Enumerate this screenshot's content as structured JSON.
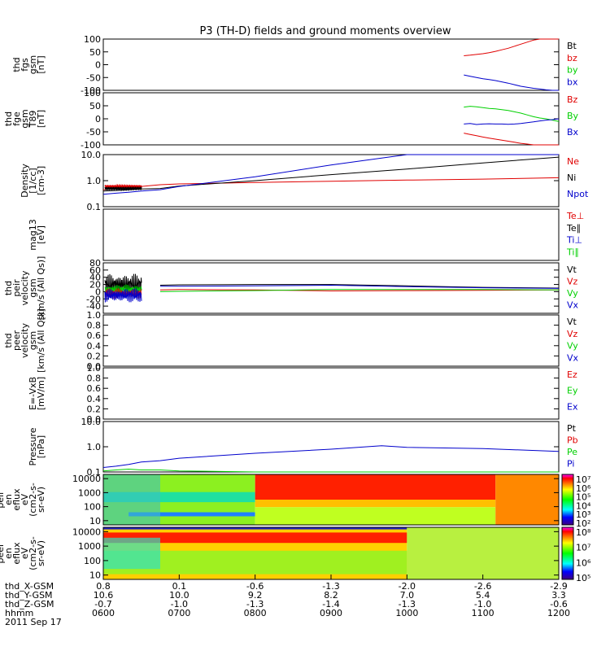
{
  "title": "P3 (TH-D) fields and ground moments overview",
  "colors": {
    "black": "#000000",
    "red": "#e00000",
    "green": "#00d000",
    "blue": "#0000cc"
  },
  "chart_data": {
    "type": "line",
    "x_range": [
      "0600",
      "1200"
    ],
    "panels": [
      {
        "id": "fgs",
        "ylabel": [
          "thd",
          "fgs",
          "gsm",
          "[nT]"
        ],
        "ylim": [
          -100,
          100
        ],
        "yticks": [
          "100",
          "50",
          "0",
          "-50",
          "-100"
        ],
        "legend": [
          {
            "label": "Bt",
            "color": "black"
          },
          {
            "label": "bz",
            "color": "red"
          },
          {
            "label": "by",
            "color": "green"
          },
          {
            "label": "bx",
            "color": "blue"
          }
        ],
        "series": [
          {
            "name": "bz",
            "color": "red",
            "x": [
              1045,
              1050,
              1055,
              1100,
              1105,
              1110,
              1115,
              1120,
              1125,
              1130,
              1135,
              1140,
              1145,
              1150,
              1155,
              1200
            ],
            "values": [
              35,
              37,
              40,
              43,
              47,
              52,
              58,
              64,
              72,
              80,
              88,
              96,
              100,
              100,
              100,
              100
            ]
          },
          {
            "name": "bx",
            "color": "blue",
            "x": [
              1045,
              1050,
              1055,
              1100,
              1105,
              1110,
              1115,
              1120,
              1125,
              1130,
              1135,
              1140,
              1145,
              1150,
              1155,
              1200
            ],
            "values": [
              -40,
              -45,
              -50,
              -55,
              -58,
              -62,
              -67,
              -72,
              -78,
              -84,
              -88,
              -92,
              -95,
              -98,
              -100,
              -100
            ]
          }
        ]
      },
      {
        "id": "fge",
        "ylabel": [
          "thd",
          "fge",
          "gsm",
          "T89",
          "[nT]"
        ],
        "ylim": [
          -100,
          100
        ],
        "yticks": [
          "100",
          "50",
          "0",
          "-50",
          "-100"
        ],
        "legend": [
          {
            "label": "Bz",
            "color": "red"
          },
          {
            "label": "By",
            "color": "green"
          },
          {
            "label": "Bx",
            "color": "blue"
          }
        ],
        "series": [
          {
            "name": "By",
            "color": "green",
            "x": [
              1045,
              1050,
              1055,
              1100,
              1105,
              1110,
              1115,
              1120,
              1125,
              1130,
              1135,
              1140,
              1145,
              1150,
              1155,
              1200
            ],
            "values": [
              45,
              48,
              46,
              43,
              40,
              38,
              35,
              32,
              27,
              22,
              15,
              8,
              3,
              0,
              -5,
              -10
            ]
          },
          {
            "name": "Bx",
            "color": "blue",
            "x": [
              1045,
              1050,
              1055,
              1100,
              1105,
              1110,
              1115,
              1120,
              1125,
              1130,
              1135,
              1140,
              1145,
              1150,
              1155,
              1200
            ],
            "values": [
              -20,
              -18,
              -22,
              -20,
              -19,
              -20,
              -20,
              -21,
              -20,
              -18,
              -15,
              -12,
              -8,
              -5,
              -3,
              0
            ]
          },
          {
            "name": "Bz",
            "color": "red",
            "x": [
              1045,
              1050,
              1055,
              1100,
              1105,
              1110,
              1115,
              1120,
              1125,
              1130,
              1135,
              1140,
              1145,
              1150,
              1155,
              1200
            ],
            "values": [
              -55,
              -60,
              -65,
              -70,
              -74,
              -78,
              -82,
              -86,
              -90,
              -94,
              -97,
              -100,
              -100,
              -100,
              -100,
              -100
            ]
          }
        ]
      },
      {
        "id": "density",
        "ylabel": [
          "Density",
          "[1/cc]",
          "[cm-3]"
        ],
        "ylim": [
          0.1,
          10.0
        ],
        "log": true,
        "yticks": [
          "10.0",
          "1.0",
          "0.1"
        ],
        "legend": [
          {
            "label": "Ne",
            "color": "red"
          },
          {
            "label": "Ni",
            "color": "black"
          },
          {
            "label": "Npot",
            "color": "blue"
          }
        ],
        "series": [
          {
            "name": "Ne",
            "color": "red",
            "x": [
              600,
              610,
              620,
              630,
              645,
              700,
              800,
              900,
              1000,
              1100,
              1200
            ],
            "values": [
              0.45,
              0.5,
              0.55,
              0.6,
              0.7,
              0.75,
              0.85,
              0.95,
              1.05,
              1.15,
              1.3
            ]
          },
          {
            "name": "Ni",
            "color": "black",
            "x": [
              600,
              610,
              620,
              630,
              645,
              700,
              800,
              900,
              1000,
              1100,
              1200
            ],
            "values": [
              0.4,
              0.42,
              0.45,
              0.48,
              0.5,
              0.62,
              1.0,
              1.7,
              2.8,
              4.8,
              8.0
            ]
          },
          {
            "name": "Npot",
            "color": "blue",
            "x": [
              600,
              610,
              620,
              630,
              645,
              700,
              800,
              900,
              1000,
              1100,
              1200
            ],
            "values": [
              0.3,
              0.33,
              0.36,
              0.4,
              0.45,
              0.6,
              1.4,
              4.0,
              10.0,
              10.0,
              10.0
            ]
          }
        ]
      },
      {
        "id": "mag",
        "ylabel": [
          "mag13",
          "[eV]"
        ],
        "ylim": [
          -7,
          1
        ],
        "log": true,
        "yticks": [],
        "legend": [
          {
            "label": "Te⊥",
            "color": "red"
          },
          {
            "label": "Te∥",
            "color": "black"
          },
          {
            "label": "Ti⊥",
            "color": "blue"
          },
          {
            "label": "Ti∥",
            "color": "green"
          }
        ],
        "series": []
      },
      {
        "id": "peir",
        "ylabel": [
          "thd",
          "peir",
          "velocity",
          "gsm",
          "[km/s (All Qs)]"
        ],
        "ylim": [
          -60,
          80
        ],
        "yticks": [
          "80",
          "60",
          "40",
          "20",
          "0",
          "-20",
          "-40"
        ],
        "legend": [
          {
            "label": "Vt",
            "color": "black"
          },
          {
            "label": "Vz",
            "color": "red"
          },
          {
            "label": "Vy",
            "color": "green"
          },
          {
            "label": "Vx",
            "color": "blue"
          }
        ],
        "series": [
          {
            "name": "Vt",
            "color": "black",
            "x": [
              645,
              700,
              800,
              900,
              1000,
              1100,
              1200
            ],
            "values": [
              18,
              19,
              20,
              20,
              16,
              12,
              10
            ]
          },
          {
            "name": "Vx",
            "color": "blue",
            "x": [
              645,
              700,
              800,
              900,
              1000,
              1100,
              1200
            ],
            "values": [
              15,
              15,
              16,
              18,
              14,
              11,
              9
            ]
          },
          {
            "name": "Vz",
            "color": "red",
            "x": [
              645,
              700,
              800,
              900,
              1000,
              1100,
              1200
            ],
            "values": [
              5,
              6,
              5,
              2,
              3,
              4,
              5
            ]
          },
          {
            "name": "Vy",
            "color": "green",
            "x": [
              645,
              700,
              800,
              900,
              1000,
              1100,
              1200
            ],
            "values": [
              0,
              1,
              3,
              6,
              6,
              6,
              5
            ]
          }
        ]
      },
      {
        "id": "peer",
        "ylabel": [
          "thd",
          "peer",
          "velocity",
          "gsm",
          "[km/s (All Qs)]"
        ],
        "ylim": [
          0.0,
          1.0
        ],
        "yticks": [
          "1.0",
          "0.8",
          "0.6",
          "0.4",
          "0.2",
          "0.0"
        ],
        "legend": [
          {
            "label": "Vt",
            "color": "black"
          },
          {
            "label": "Vz",
            "color": "red"
          },
          {
            "label": "Vy",
            "color": "green"
          },
          {
            "label": "Vx",
            "color": "blue"
          }
        ],
        "series": []
      },
      {
        "id": "efield",
        "ylabel": [
          "E=-VxB",
          "[mV/m]"
        ],
        "ylim": [
          0.0,
          1.0
        ],
        "yticks": [
          "1.0",
          "0.8",
          "0.6",
          "0.4",
          "0.2",
          "0.0"
        ],
        "legend": [
          {
            "label": "Ez",
            "color": "red"
          },
          {
            "label": "Ey",
            "color": "green"
          },
          {
            "label": "Ex",
            "color": "blue"
          }
        ],
        "series": []
      },
      {
        "id": "pressure",
        "ylabel": [
          "Pressure",
          "[nPa]"
        ],
        "ylim": [
          0.1,
          10.0
        ],
        "log": true,
        "yticks": [
          "10.0",
          "1.0",
          "0.1"
        ],
        "legend": [
          {
            "label": "Pt",
            "color": "black"
          },
          {
            "label": "Pb",
            "color": "red"
          },
          {
            "label": "Pe",
            "color": "green"
          },
          {
            "label": "Pi",
            "color": "blue"
          }
        ],
        "series": [
          {
            "name": "Pi",
            "color": "blue",
            "x": [
              600,
              610,
              620,
              630,
              645,
              700,
              800,
              900,
              940,
              1000,
              1100,
              1200
            ],
            "values": [
              0.15,
              0.17,
              0.2,
              0.25,
              0.28,
              0.35,
              0.55,
              0.8,
              1.1,
              0.95,
              0.85,
              0.65
            ]
          },
          {
            "name": "Pe",
            "color": "green",
            "x": [
              600,
              610,
              620,
              630,
              645,
              700,
              800,
              900,
              1000,
              1100,
              1200
            ],
            "values": [
              0.11,
              0.12,
              0.13,
              0.12,
              0.12,
              0.11,
              0.1,
              0.1,
              0.1,
              0.1,
              0.1
            ]
          }
        ]
      },
      {
        "id": "peir_en",
        "ylabel": [
          "thd",
          "peir",
          "en",
          "eflux",
          "eV",
          "(cm2-s-",
          "sr-eV)"
        ],
        "ylim": [
          5,
          20000
        ],
        "log": true,
        "yticks": [
          "10000",
          "1000",
          "100",
          "10"
        ],
        "colorbar": [
          "10⁷",
          "10⁶",
          "10⁵",
          "10⁴",
          "10³",
          "10²"
        ]
      },
      {
        "id": "peer_en",
        "ylabel": [
          "thd",
          "peer",
          "en",
          "eflux",
          "eV",
          "(cm2-s-",
          "sr-eV)"
        ],
        "ylim": [
          5,
          20000
        ],
        "log": true,
        "yticks": [
          "10000",
          "1000",
          "100",
          "10"
        ],
        "colorbar": [
          "10⁸",
          "10⁷",
          "10⁶",
          "10⁵"
        ]
      }
    ],
    "x_axis": {
      "rows": [
        {
          "label": "thd_X-GSM",
          "values": [
            "0.8",
            "0.1",
            "-0.6",
            "-1.3",
            "-2.0",
            "-2.6",
            "-2.9"
          ]
        },
        {
          "label": "thd_Y-GSM",
          "values": [
            "10.6",
            "10.0",
            "9.2",
            "8.2",
            "7.0",
            "5.4",
            "3.3"
          ]
        },
        {
          "label": "thd_Z-GSM",
          "values": [
            "-0.7",
            "-1.0",
            "-1.3",
            "-1.4",
            "-1.3",
            "-1.0",
            "-0.6"
          ]
        },
        {
          "label": "hhmm",
          "values": [
            "0600",
            "0700",
            "0800",
            "0900",
            "1000",
            "1100",
            "1200"
          ]
        }
      ],
      "date": "2011 Sep 17"
    }
  }
}
